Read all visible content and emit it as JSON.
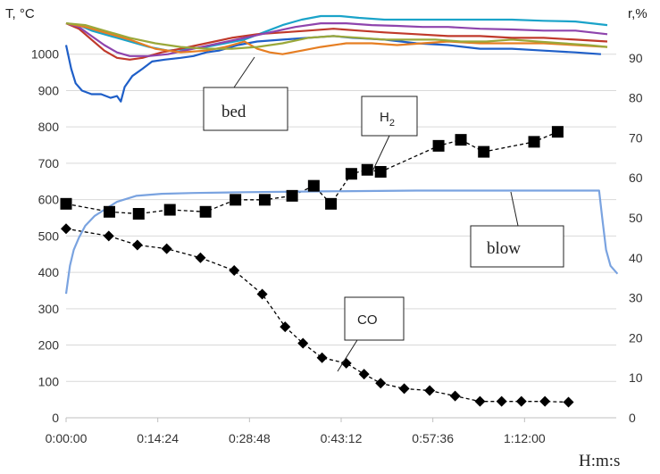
{
  "chart_data": {
    "type": "line",
    "ylabel_left": "T, °C",
    "ylabel_right": "r,%",
    "xlabel": "H:m:s",
    "x_tick_labels": [
      "0:00:00",
      "0:14:24",
      "0:28:48",
      "0:43:12",
      "0:57:36",
      "1:12:00"
    ],
    "x_tick_minutes": [
      0,
      14.4,
      28.8,
      43.2,
      57.6,
      72.0
    ],
    "xlim_minutes": [
      0,
      86.4
    ],
    "ylim_left": [
      0,
      1100
    ],
    "ylim_right": [
      0,
      100
    ],
    "y_ticks_left": [
      0,
      100,
      200,
      300,
      400,
      500,
      600,
      700,
      800,
      900,
      1000
    ],
    "y_ticks_right": [
      0,
      10,
      20,
      30,
      40,
      50,
      60,
      70,
      80,
      90
    ],
    "grid": "horizontal",
    "annotations": [
      {
        "label": "bed"
      },
      {
        "label": "H",
        "subscript": "2"
      },
      {
        "label": "blow"
      },
      {
        "label": "CO"
      }
    ],
    "series": [
      {
        "axis": "right",
        "marker": "square",
        "color": "#000000",
        "x_minutes": [
          0,
          6.8,
          11.4,
          16.3,
          21.9,
          26.6,
          31.2,
          35.5,
          38.9,
          41.6,
          44.8,
          47.3,
          49.4,
          58.5,
          62.0,
          65.6,
          73.5,
          77.2
        ],
        "values": [
          53.5,
          51.5,
          51,
          52,
          51.5,
          54.5,
          54.5,
          55.5,
          58,
          53.5,
          61,
          62,
          61.5,
          68,
          69.5,
          66.5,
          69,
          71.5
        ]
      },
      {
        "axis": "left",
        "marker": "diamond",
        "color": "#000000",
        "x_minutes": [
          0,
          6.7,
          11.2,
          15.8,
          21.1,
          26.4,
          30.8,
          34.4,
          37.2,
          40.2,
          44.0,
          46.8,
          49.4,
          53.1,
          57.1,
          61.1,
          65.0,
          68.4,
          71.5,
          75.2,
          78.9
        ],
        "values": [
          520,
          500,
          475,
          465,
          440,
          405,
          340,
          250,
          205,
          165,
          150,
          120,
          95,
          80,
          75,
          60,
          45,
          45,
          45,
          45,
          43
        ]
      },
      {
        "axis": "right",
        "color": "#7aa3e0",
        "x_minutes": [
          0,
          0.6,
          1.2,
          2,
          3,
          4.5,
          6,
          8,
          11,
          15,
          20,
          28,
          40,
          55,
          70,
          79,
          83.7,
          84.2,
          84.8,
          85.5,
          86.6
        ],
        "values": [
          31,
          38,
          42,
          45,
          48,
          50.5,
          52,
          54,
          55.5,
          56,
          56.2,
          56.4,
          56.6,
          56.8,
          56.8,
          56.8,
          56.8,
          50,
          42,
          38,
          36
        ]
      },
      {
        "axis": "left",
        "color": "#1f5fc8",
        "x_minutes": [
          0,
          0.8,
          1.5,
          2.5,
          4,
          5.5,
          7,
          8,
          8.6,
          9.2,
          10.4,
          12,
          13.5,
          15.5,
          18,
          20,
          22,
          24,
          27,
          30,
          34,
          38,
          42,
          45,
          50,
          55,
          60,
          65,
          70,
          75,
          80,
          84
        ],
        "values": [
          1025,
          960,
          920,
          900,
          890,
          890,
          880,
          885,
          870,
          910,
          940,
          960,
          980,
          985,
          990,
          995,
          1005,
          1010,
          1025,
          1035,
          1040,
          1045,
          1050,
          1045,
          1040,
          1030,
          1025,
          1015,
          1015,
          1010,
          1005,
          1000
        ]
      },
      {
        "axis": "left",
        "color": "#1aa3c9",
        "x_minutes": [
          0,
          2,
          4,
          7,
          10,
          13,
          16,
          19,
          22,
          25,
          28,
          31,
          34,
          37,
          40,
          43,
          46,
          50,
          55,
          60,
          65,
          70,
          75,
          80,
          85
        ],
        "values": [
          1085,
          1080,
          1065,
          1050,
          1035,
          1020,
          1010,
          1015,
          1020,
          1030,
          1040,
          1060,
          1080,
          1095,
          1105,
          1105,
          1100,
          1095,
          1095,
          1095,
          1095,
          1095,
          1092,
          1090,
          1080
        ]
      },
      {
        "axis": "left",
        "color": "#c0392b",
        "x_minutes": [
          0,
          2,
          4,
          6,
          8,
          10,
          12,
          15,
          18,
          22,
          26,
          30,
          34,
          38,
          42,
          46,
          50,
          55,
          60,
          65,
          70,
          75,
          80,
          85
        ],
        "values": [
          1085,
          1070,
          1040,
          1010,
          990,
          985,
          990,
          1005,
          1015,
          1030,
          1045,
          1055,
          1060,
          1065,
          1070,
          1065,
          1060,
          1055,
          1050,
          1050,
          1045,
          1045,
          1040,
          1035
        ]
      },
      {
        "axis": "left",
        "color": "#8e44ad",
        "x_minutes": [
          0,
          2,
          4,
          6,
          8,
          10,
          13,
          16,
          20,
          24,
          28,
          32,
          36,
          40,
          44,
          48,
          52,
          56,
          60,
          65,
          70,
          75,
          80,
          85
        ],
        "values": [
          1085,
          1075,
          1050,
          1025,
          1005,
          995,
          995,
          1000,
          1015,
          1030,
          1045,
          1060,
          1075,
          1085,
          1085,
          1080,
          1078,
          1075,
          1075,
          1070,
          1068,
          1065,
          1065,
          1055
        ]
      },
      {
        "axis": "left",
        "color": "#e67e22",
        "x_minutes": [
          0,
          3,
          6,
          10,
          14,
          18,
          22,
          25,
          28,
          30,
          32,
          34,
          37,
          40,
          44,
          48,
          52,
          56,
          60,
          65,
          70,
          75,
          80,
          85
        ],
        "values": [
          1085,
          1075,
          1060,
          1040,
          1015,
          1005,
          1010,
          1020,
          1035,
          1015,
          1005,
          1000,
          1010,
          1020,
          1030,
          1030,
          1025,
          1030,
          1035,
          1030,
          1030,
          1030,
          1025,
          1020
        ]
      },
      {
        "axis": "left",
        "color": "#9aa83a",
        "x_minutes": [
          0,
          3,
          6,
          10,
          14,
          18,
          22,
          26,
          30,
          34,
          38,
          42,
          46,
          50,
          54,
          58,
          62,
          66,
          70,
          74,
          78,
          82,
          85
        ],
        "values": [
          1085,
          1080,
          1065,
          1045,
          1030,
          1020,
          1015,
          1015,
          1020,
          1030,
          1045,
          1050,
          1045,
          1040,
          1040,
          1040,
          1035,
          1035,
          1040,
          1035,
          1030,
          1025,
          1020
        ]
      }
    ]
  }
}
